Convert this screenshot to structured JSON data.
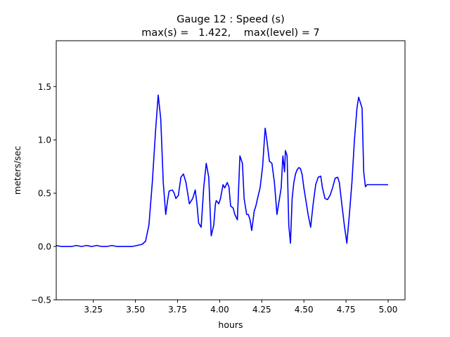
{
  "chart_data": {
    "type": "line",
    "title": "Gauge 12 : Speed (s)",
    "subtitle": "max(s) =   1.422,    max(level) = 7",
    "xlabel": "hours",
    "ylabel": "meters/sec",
    "xlim": [
      3.03,
      5.1
    ],
    "ylim": [
      -0.5,
      1.93
    ],
    "xticks": [
      3.25,
      3.5,
      3.75,
      4.0,
      4.25,
      4.5,
      4.75,
      5.0
    ],
    "xtick_labels": [
      "3.25",
      "3.50",
      "3.75",
      "4.00",
      "4.25",
      "4.50",
      "4.75",
      "5.00"
    ],
    "yticks": [
      -0.5,
      0.0,
      0.5,
      1.0,
      1.5
    ],
    "ytick_labels": [
      "−0.5",
      "0.0",
      "0.5",
      "1.0",
      "1.5"
    ],
    "grid": false,
    "series": [
      {
        "color": "#0000ff",
        "x": [
          3.03,
          3.06,
          3.09,
          3.12,
          3.15,
          3.18,
          3.21,
          3.24,
          3.27,
          3.3,
          3.33,
          3.36,
          3.39,
          3.42,
          3.45,
          3.48,
          3.51,
          3.54,
          3.56,
          3.58,
          3.6,
          3.62,
          3.635,
          3.65,
          3.665,
          3.68,
          3.69,
          3.7,
          3.72,
          3.73,
          3.74,
          3.755,
          3.77,
          3.785,
          3.8,
          3.82,
          3.84,
          3.855,
          3.865,
          3.875,
          3.89,
          3.905,
          3.92,
          3.935,
          3.95,
          3.965,
          3.975,
          3.98,
          3.995,
          4.005,
          4.02,
          4.03,
          4.045,
          4.055,
          4.065,
          4.08,
          4.09,
          4.105,
          4.12,
          4.135,
          4.145,
          4.16,
          4.17,
          4.18,
          4.19,
          4.205,
          4.215,
          4.225,
          4.24,
          4.255,
          4.27,
          4.28,
          4.295,
          4.31,
          4.325,
          4.34,
          4.355,
          4.365,
          4.375,
          4.385,
          4.39,
          4.4,
          4.41,
          4.42,
          4.43,
          4.44,
          4.45,
          4.46,
          4.47,
          4.48,
          4.49,
          4.5,
          4.51,
          4.525,
          4.54,
          4.555,
          4.57,
          4.585,
          4.6,
          4.61,
          4.625,
          4.64,
          4.655,
          4.67,
          4.685,
          4.7,
          4.71,
          4.725,
          4.74,
          4.755,
          4.77,
          4.785,
          4.8,
          4.815,
          4.825,
          4.835,
          4.845,
          4.855,
          4.865,
          4.875,
          4.885,
          4.895,
          4.905,
          4.915,
          4.925,
          4.935,
          4.945,
          4.955,
          4.965,
          4.975,
          4.98,
          4.985,
          4.99,
          5.0
        ],
        "y": [
          0.01,
          0.0,
          0.0,
          0.0,
          0.01,
          0.0,
          0.01,
          0.0,
          0.01,
          0.0,
          0.0,
          0.01,
          0.0,
          0.0,
          0.0,
          0.0,
          0.01,
          0.02,
          0.05,
          0.2,
          0.6,
          1.1,
          1.42,
          1.2,
          0.6,
          0.3,
          0.42,
          0.52,
          0.53,
          0.5,
          0.45,
          0.48,
          0.65,
          0.68,
          0.6,
          0.4,
          0.45,
          0.53,
          0.4,
          0.22,
          0.18,
          0.55,
          0.78,
          0.65,
          0.1,
          0.2,
          0.4,
          0.43,
          0.4,
          0.45,
          0.58,
          0.55,
          0.6,
          0.56,
          0.38,
          0.36,
          0.3,
          0.25,
          0.85,
          0.78,
          0.45,
          0.3,
          0.3,
          0.25,
          0.15,
          0.33,
          0.38,
          0.45,
          0.55,
          0.75,
          1.11,
          1.0,
          0.8,
          0.78,
          0.6,
          0.3,
          0.45,
          0.55,
          0.85,
          0.7,
          0.9,
          0.85,
          0.2,
          0.03,
          0.45,
          0.6,
          0.68,
          0.72,
          0.74,
          0.73,
          0.67,
          0.55,
          0.45,
          0.3,
          0.18,
          0.4,
          0.58,
          0.65,
          0.66,
          0.55,
          0.45,
          0.44,
          0.48,
          0.55,
          0.64,
          0.65,
          0.6,
          0.4,
          0.2,
          0.03,
          0.3,
          0.6,
          1.0,
          1.3,
          1.4,
          1.35,
          1.3,
          0.7,
          0.56,
          0.58,
          0.58,
          0.58,
          0.58,
          0.58,
          0.58,
          0.58,
          0.58,
          0.58,
          0.58,
          0.58,
          0.58,
          0.58,
          0.58,
          0.58
        ]
      }
    ]
  }
}
